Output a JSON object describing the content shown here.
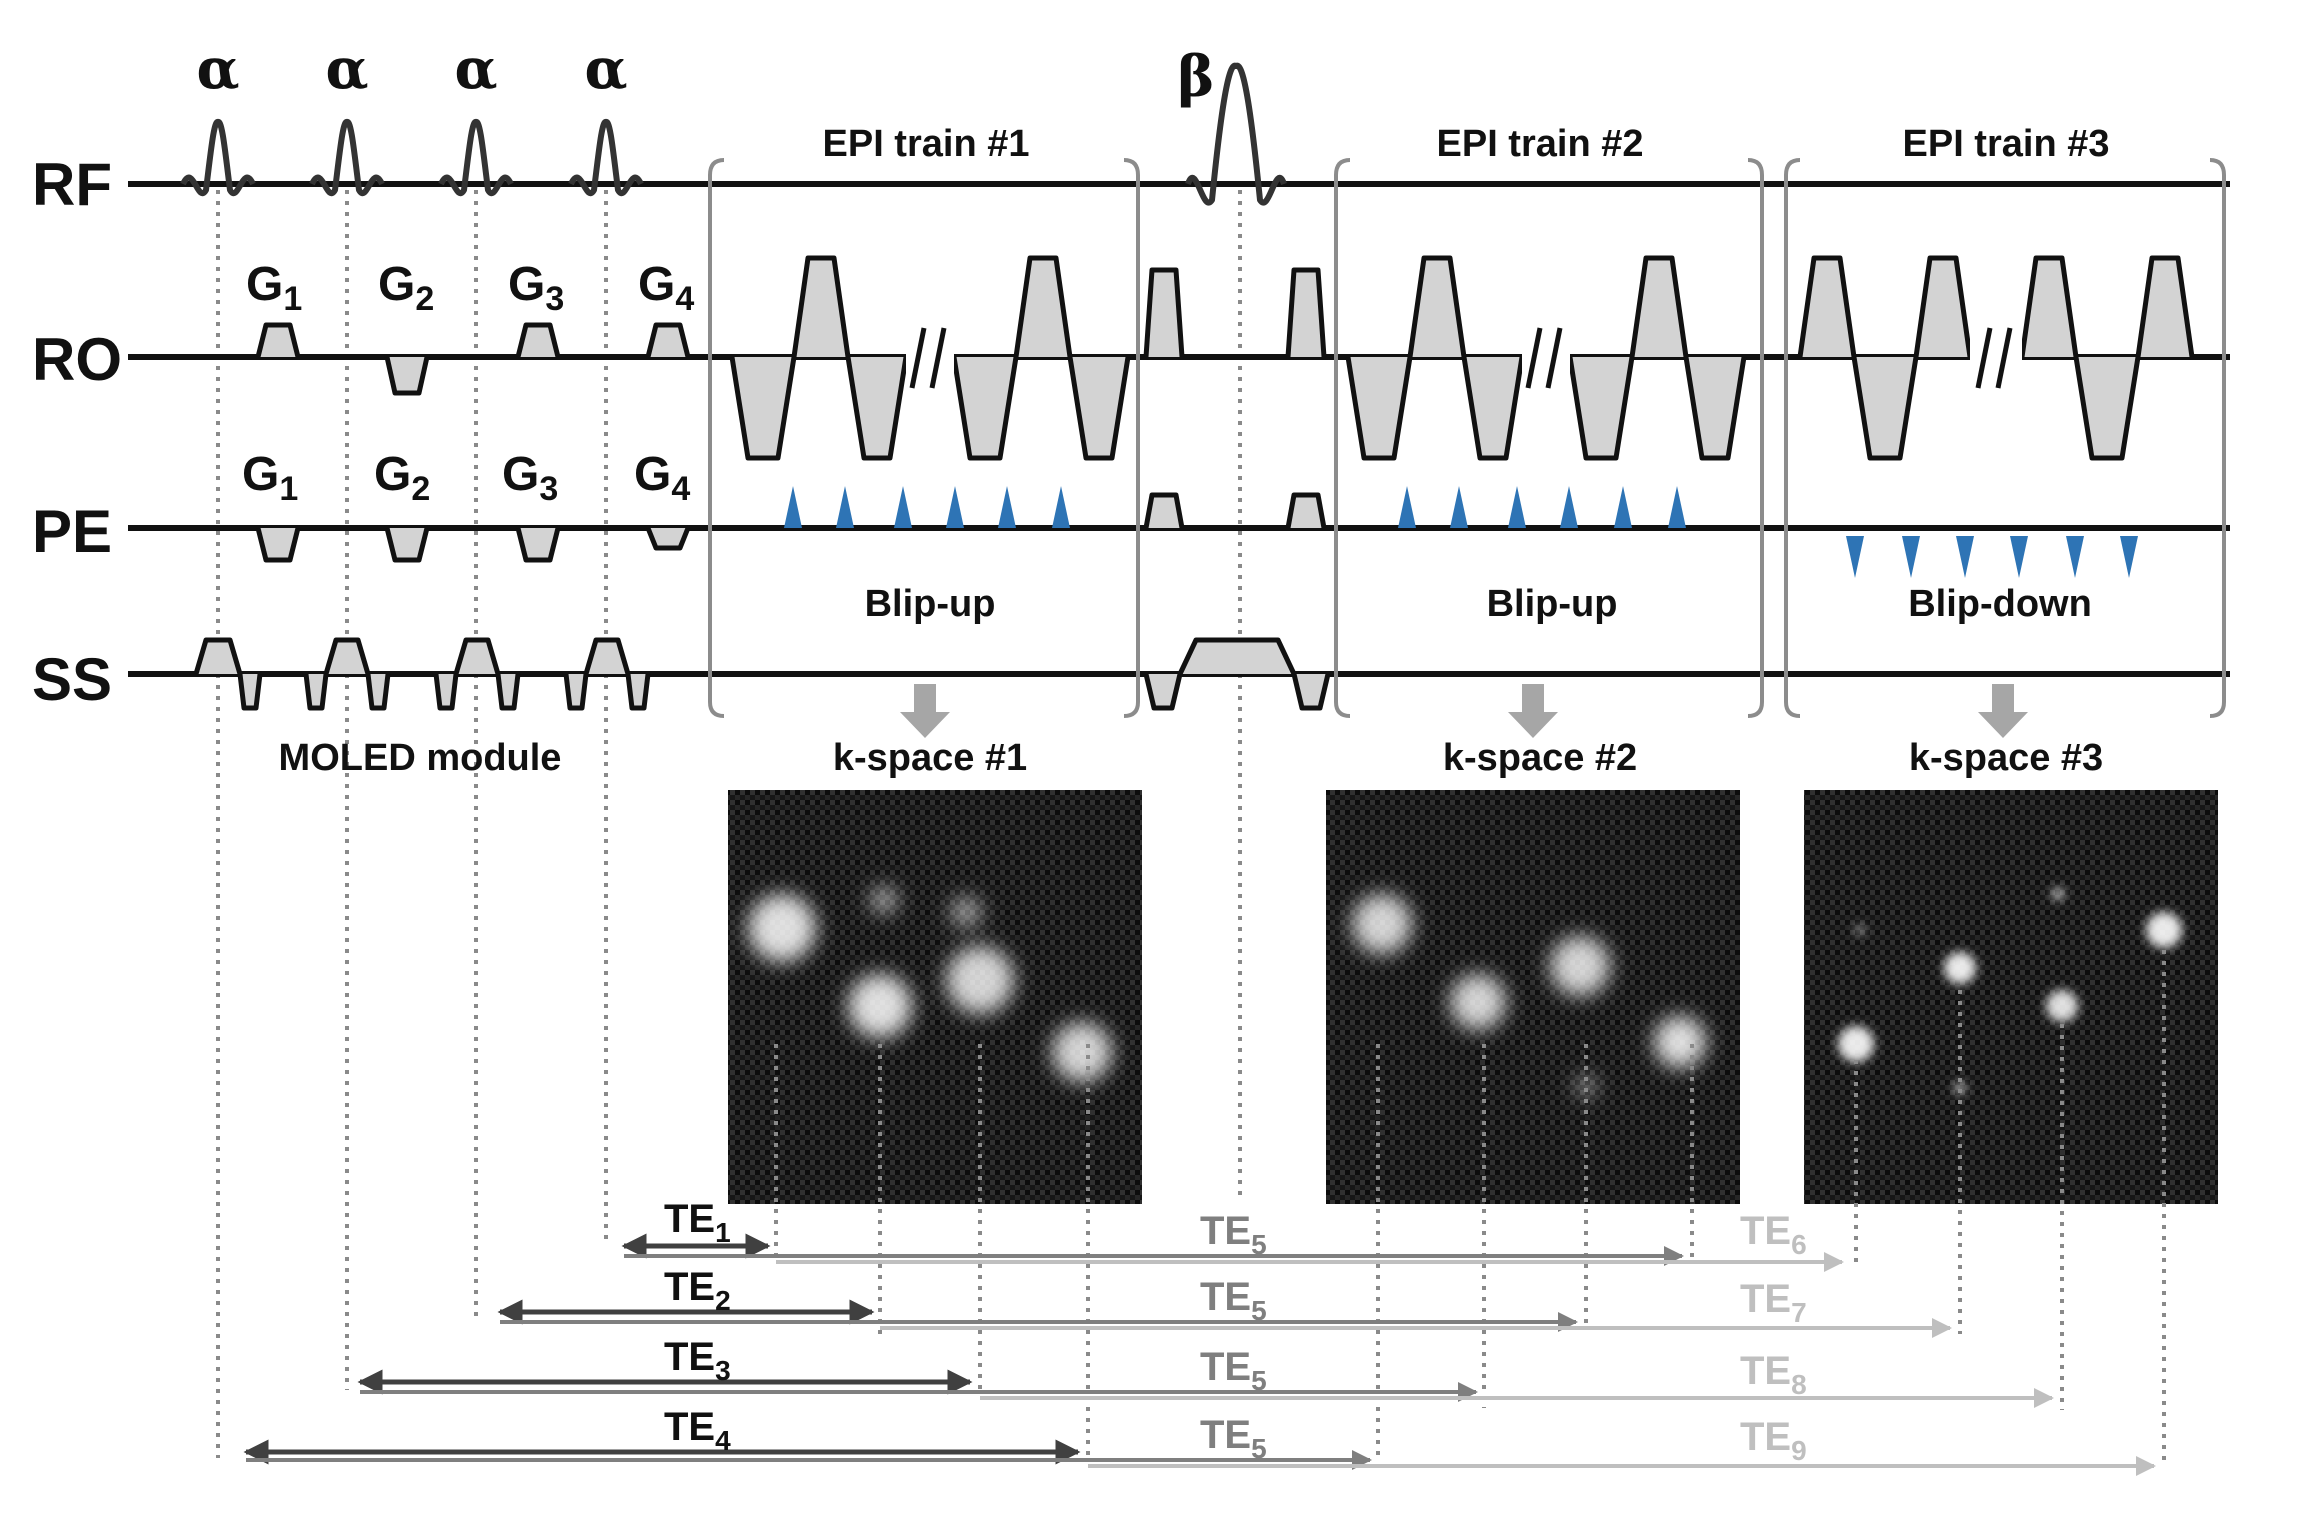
{
  "channels": {
    "rf": "RF",
    "ro": "RO",
    "pe": "PE",
    "ss": "SS"
  },
  "pulses": {
    "alpha": "α",
    "beta": "β"
  },
  "gradients": {
    "g1": "G",
    "g1_sub": "1",
    "g2": "G",
    "g2_sub": "2",
    "g3": "G",
    "g3_sub": "3",
    "g4": "G",
    "g4_sub": "4"
  },
  "module_label": "MOLED module",
  "epi_trains": [
    {
      "title": "EPI train #1",
      "blip": "Blip-up",
      "kspace": "k-space #1"
    },
    {
      "title": "EPI train #2",
      "blip": "Blip-up",
      "kspace": "k-space #2"
    },
    {
      "title": "EPI train #3",
      "blip": "Blip-down",
      "kspace": "k-space #3"
    }
  ],
  "echo_times": {
    "te": "TE",
    "te1": "1",
    "te2": "2",
    "te3": "3",
    "te4": "4",
    "te5": "5",
    "te6": "6",
    "te7": "7",
    "te8": "8",
    "te9": "9"
  },
  "colors": {
    "line": "#111111",
    "gradient_fill": "#d3d3d3",
    "blip_blue": "#2e74b5",
    "bracket": "#8c8c8c",
    "arrow_dark": "#404040",
    "arrow_mid": "#7f7f7f",
    "arrow_light": "#bfbfbf",
    "dotted": "#8a8a8a",
    "kspace_bg": "#141414"
  }
}
